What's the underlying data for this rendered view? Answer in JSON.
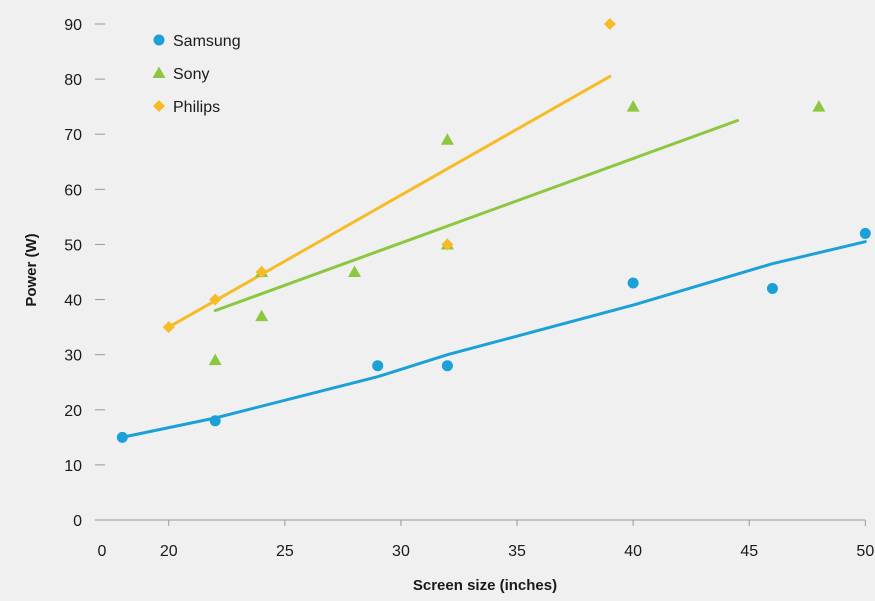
{
  "chart_data": {
    "type": "scatter",
    "title": "",
    "xlabel": "Screen size (inches)",
    "ylabel": "Power (W)",
    "xlim": [
      17,
      50
    ],
    "ylim": [
      0,
      90
    ],
    "x_ticks": [
      "0",
      "20",
      "25",
      "30",
      "35",
      "40",
      "45",
      "50"
    ],
    "y_ticks": [
      "0",
      "10",
      "20",
      "30",
      "40",
      "50",
      "60",
      "70",
      "80",
      "90"
    ],
    "grid": false,
    "legend_position": "top-left",
    "series": [
      {
        "name": "Samsung",
        "color": "#1ba1d8",
        "marker": "circle",
        "x": [
          18,
          22,
          29,
          32,
          40,
          46,
          50
        ],
        "y": [
          15,
          18,
          28,
          28,
          43,
          42,
          52
        ],
        "trendline": [
          [
            18,
            15
          ],
          [
            22,
            18.5
          ],
          [
            29,
            26
          ],
          [
            32,
            30
          ],
          [
            40,
            39
          ],
          [
            46,
            46.5
          ],
          [
            50,
            50.5
          ]
        ]
      },
      {
        "name": "Sony",
        "color": "#8dc63f",
        "marker": "triangle",
        "x": [
          22,
          24,
          24,
          28,
          32,
          32,
          40,
          48
        ],
        "y": [
          29,
          37,
          45,
          45,
          69,
          50,
          75,
          75
        ],
        "trendline": [
          [
            22,
            38
          ],
          [
            44.5,
            72.5
          ]
        ]
      },
      {
        "name": "Philips",
        "color": "#f6bc25",
        "marker": "diamond",
        "x": [
          20,
          22,
          24,
          32,
          39
        ],
        "y": [
          35,
          40,
          45,
          50,
          90
        ],
        "trendline": [
          [
            20,
            35
          ],
          [
            39,
            80.5
          ]
        ]
      }
    ]
  }
}
